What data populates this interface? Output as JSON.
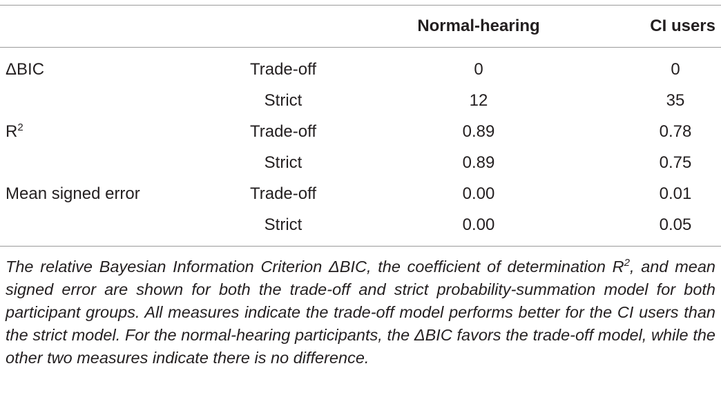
{
  "table": {
    "columns": [
      "Normal-hearing",
      "CI users"
    ],
    "groups": [
      {
        "label": "ΔBIC",
        "rows": [
          {
            "model": "Trade-off",
            "values": [
              "0",
              "0"
            ]
          },
          {
            "model": "Strict",
            "values": [
              "12",
              "35"
            ]
          }
        ]
      },
      {
        "label": "R",
        "label_sup": "2",
        "rows": [
          {
            "model": "Trade-off",
            "values": [
              "0.89",
              "0.78"
            ]
          },
          {
            "model": "Strict",
            "values": [
              "0.89",
              "0.75"
            ]
          }
        ]
      },
      {
        "label": "Mean signed error",
        "rows": [
          {
            "model": "Trade-off",
            "values": [
              "0.00",
              "0.01"
            ]
          },
          {
            "model": "Strict",
            "values": [
              "0.00",
              "0.05"
            ]
          }
        ]
      }
    ]
  },
  "caption": {
    "part1": "The relative Bayesian Information Criterion ΔBIC, the coefficient of determination R",
    "sup": "2",
    "part2": ", and mean signed error are shown for both the trade-off and strict probability-summation model for both participant groups. All measures indicate the trade-off model performs better for the CI users than the strict model. For the normal-hearing participants, the ΔBIC favors the trade-off model, while the other two measures indicate there is no difference."
  }
}
